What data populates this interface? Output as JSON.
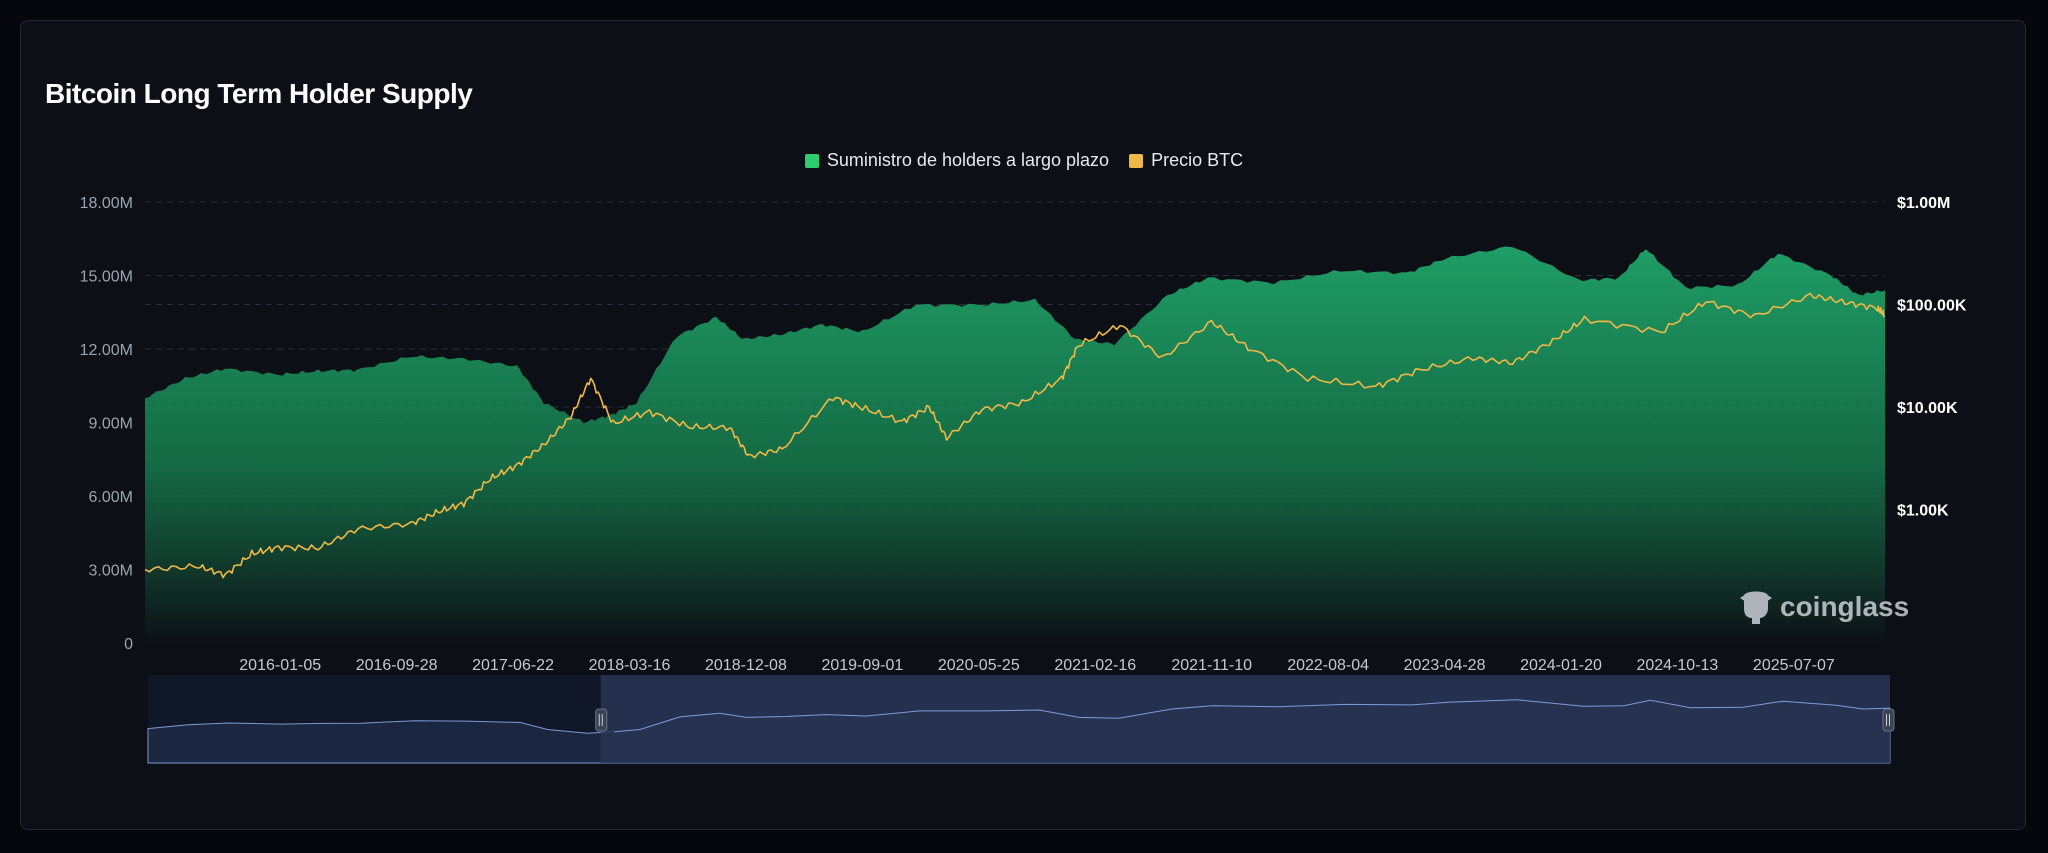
{
  "header": {
    "title": "Bitcoin Long Term Holder Supply"
  },
  "watermark": {
    "text": "coinglass",
    "icon": "coinglass-logo-icon"
  },
  "colors": {
    "supply": "#2ecc71",
    "price": "#f0b846",
    "grid": "#2a313c",
    "navigator_fill": "#283553",
    "navigator_line": "#7b98d8"
  },
  "chart_data": {
    "type": "area",
    "legend": [
      {
        "name": "Suministro de holders a largo plazo",
        "color": "#2ecc71"
      },
      {
        "name": "Precio BTC",
        "color": "#f0b846"
      }
    ],
    "legend_position": "top-center",
    "grid": true,
    "x_tick_labels": [
      "2016-01-05",
      "2016-09-28",
      "2017-06-22",
      "2018-03-16",
      "2018-12-08",
      "2019-09-01",
      "2020-05-25",
      "2021-02-16",
      "2021-11-10",
      "2022-08-04",
      "2023-04-28",
      "2024-01-20",
      "2024-10-13",
      "2025-07-07"
    ],
    "x_range": [
      "2015-03-01",
      "2026-02-01"
    ],
    "y_left": {
      "ticks": [
        "0",
        "3.00M",
        "6.00M",
        "9.00M",
        "12.00M",
        "15.00M",
        "18.00M"
      ],
      "range": [
        0,
        18000000
      ]
    },
    "y_right": {
      "ticks": [
        "$1.00K",
        "$10.00K",
        "$100.00K",
        "$1.00M"
      ],
      "scale": "log",
      "range": [
        50,
        1000000
      ]
    },
    "series": [
      {
        "name": "Suministro de holders a largo plazo",
        "axis": "left",
        "points": [
          [
            "2015-03-01",
            10000000
          ],
          [
            "2015-06-01",
            10800000
          ],
          [
            "2015-09-01",
            11200000
          ],
          [
            "2016-01-01",
            10950000
          ],
          [
            "2016-04-01",
            11100000
          ],
          [
            "2016-07-01",
            11150000
          ],
          [
            "2016-11-01",
            11700000
          ],
          [
            "2017-03-01",
            11600000
          ],
          [
            "2017-07-01",
            11300000
          ],
          [
            "2017-09-01",
            9800000
          ],
          [
            "2017-12-01",
            9000000
          ],
          [
            "2018-02-01",
            9300000
          ],
          [
            "2018-04-01",
            9800000
          ],
          [
            "2018-07-01",
            12500000
          ],
          [
            "2018-10-01",
            13300000
          ],
          [
            "2018-12-01",
            12400000
          ],
          [
            "2019-03-01",
            12600000
          ],
          [
            "2019-06-01",
            13000000
          ],
          [
            "2019-09-01",
            12700000
          ],
          [
            "2020-01-01",
            13800000
          ],
          [
            "2020-06-01",
            13800000
          ],
          [
            "2020-10-01",
            14000000
          ],
          [
            "2021-01-01",
            12400000
          ],
          [
            "2021-04-01",
            12200000
          ],
          [
            "2021-08-01",
            14200000
          ],
          [
            "2021-11-01",
            14900000
          ],
          [
            "2022-04-01",
            14700000
          ],
          [
            "2022-09-01",
            15200000
          ],
          [
            "2023-02-01",
            15100000
          ],
          [
            "2023-05-01",
            15700000
          ],
          [
            "2023-10-01",
            16200000
          ],
          [
            "2024-03-01",
            14800000
          ],
          [
            "2024-06-01",
            14900000
          ],
          [
            "2024-08-01",
            16100000
          ],
          [
            "2024-11-01",
            14500000
          ],
          [
            "2025-03-01",
            14600000
          ],
          [
            "2025-06-01",
            15900000
          ],
          [
            "2025-10-01",
            15000000
          ],
          [
            "2025-12-01",
            14200000
          ],
          [
            "2026-02-01",
            14400000
          ]
        ]
      },
      {
        "name": "Precio BTC",
        "axis": "right",
        "points": [
          [
            "2015-03-01",
            260
          ],
          [
            "2015-07-01",
            280
          ],
          [
            "2015-09-01",
            230
          ],
          [
            "2015-11-01",
            370
          ],
          [
            "2016-01-01",
            430
          ],
          [
            "2016-04-01",
            420
          ],
          [
            "2016-07-01",
            650
          ],
          [
            "2016-11-01",
            730
          ],
          [
            "2017-01-01",
            950
          ],
          [
            "2017-03-01",
            1150
          ],
          [
            "2017-05-01",
            2000
          ],
          [
            "2017-07-01",
            2700
          ],
          [
            "2017-09-01",
            4300
          ],
          [
            "2017-11-01",
            8000
          ],
          [
            "2017-12-17",
            19000
          ],
          [
            "2018-02-06",
            6900
          ],
          [
            "2018-05-01",
            9000
          ],
          [
            "2018-08-01",
            6400
          ],
          [
            "2018-11-01",
            6300
          ],
          [
            "2018-12-15",
            3300
          ],
          [
            "2019-03-01",
            3900
          ],
          [
            "2019-06-26",
            12500
          ],
          [
            "2019-09-01",
            9800
          ],
          [
            "2019-12-01",
            7200
          ],
          [
            "2020-02-01",
            10000
          ],
          [
            "2020-03-12",
            5000
          ],
          [
            "2020-06-01",
            9500
          ],
          [
            "2020-09-01",
            11000
          ],
          [
            "2020-12-01",
            19000
          ],
          [
            "2021-01-08",
            40000
          ],
          [
            "2021-04-14",
            63000
          ],
          [
            "2021-07-20",
            30000
          ],
          [
            "2021-11-10",
            68000
          ],
          [
            "2022-02-01",
            38000
          ],
          [
            "2022-06-18",
            19000
          ],
          [
            "2022-11-21",
            15800
          ],
          [
            "2023-03-01",
            23000
          ],
          [
            "2023-07-01",
            30000
          ],
          [
            "2023-10-01",
            27000
          ],
          [
            "2024-01-01",
            44000
          ],
          [
            "2024-03-14",
            72000
          ],
          [
            "2024-09-06",
            54000
          ],
          [
            "2024-12-17",
            107000
          ],
          [
            "2025-04-08",
            77000
          ],
          [
            "2025-08-14",
            123000
          ],
          [
            "2025-11-01",
            105000
          ],
          [
            "2026-01-15",
            92000
          ],
          [
            "2026-02-01",
            78000
          ]
        ]
      }
    ],
    "navigator": {
      "selected_start": "2018-01-01",
      "selected_end": "2026-02-01"
    }
  }
}
